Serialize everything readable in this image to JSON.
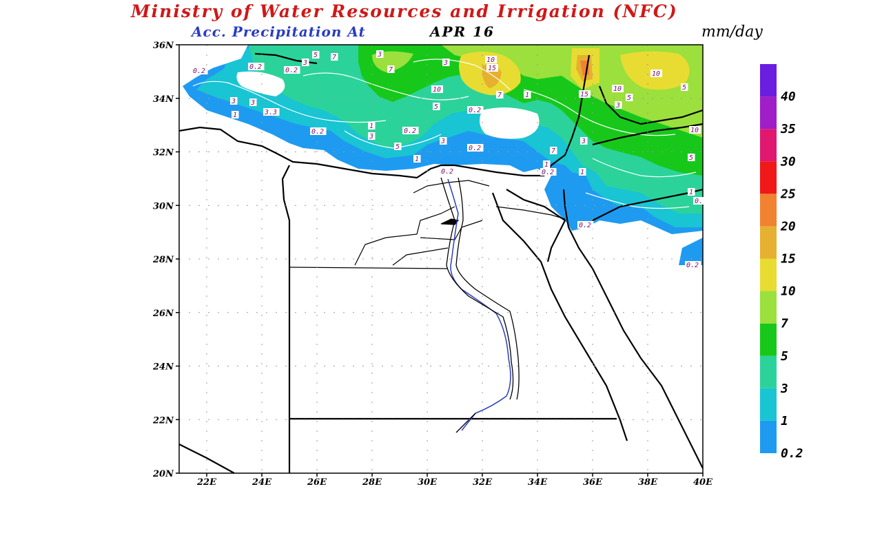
{
  "header": {
    "title": "Ministry of Water Resources and Irrigation (NFC)",
    "subtitle": "Acc. Precipitation  At",
    "date": "APR 16",
    "units": "mm/day"
  },
  "axes": {
    "lat_labels": [
      "36N",
      "34N",
      "32N",
      "30N",
      "28N",
      "26N",
      "24N",
      "22N",
      "20N"
    ],
    "lon_labels": [
      "22E",
      "24E",
      "26E",
      "28E",
      "30E",
      "32E",
      "34E",
      "36E",
      "38E",
      "40E"
    ]
  },
  "colorbar": {
    "levels": [
      "0.2",
      "1",
      "3",
      "5",
      "7",
      "10",
      "15",
      "20",
      "25",
      "30",
      "35",
      "40"
    ],
    "colors": [
      "#1e9bf0",
      "#19c4d3",
      "#2bd39a",
      "#17c81a",
      "#9be03c",
      "#e8dc32",
      "#e6b030",
      "#f08230",
      "#f01818",
      "#e01870",
      "#a01ec8",
      "#6b1ee0"
    ]
  },
  "contour_labels": [
    {
      "text": "3"
    },
    {
      "text": "5"
    },
    {
      "text": "7"
    },
    {
      "text": "3"
    },
    {
      "text": "3"
    },
    {
      "text": "10"
    },
    {
      "text": "15"
    },
    {
      "text": "0.2"
    },
    {
      "text": "0.2"
    },
    {
      "text": "0.2"
    },
    {
      "text": "7"
    },
    {
      "text": "10"
    },
    {
      "text": "5"
    },
    {
      "text": "7"
    },
    {
      "text": "1"
    },
    {
      "text": "0.2"
    },
    {
      "text": "3"
    },
    {
      "text": "3"
    },
    {
      "text": "3.3"
    },
    {
      "text": "1"
    },
    {
      "text": "0.2"
    },
    {
      "text": "1"
    },
    {
      "text": "3"
    },
    {
      "text": "0.2"
    },
    {
      "text": "5"
    },
    {
      "text": "3"
    },
    {
      "text": "0.2"
    },
    {
      "text": "1"
    },
    {
      "text": "0.2"
    },
    {
      "text": "1"
    },
    {
      "text": "15"
    },
    {
      "text": "10"
    },
    {
      "text": "5"
    },
    {
      "text": "3"
    },
    {
      "text": "10"
    },
    {
      "text": "5"
    },
    {
      "text": "10"
    },
    {
      "text": "7"
    },
    {
      "text": "5"
    },
    {
      "text": "3"
    },
    {
      "text": "1"
    },
    {
      "text": "0.2"
    },
    {
      "text": "0.2"
    },
    {
      "text": "1"
    },
    {
      "text": "0."
    },
    {
      "text": "0.2"
    }
  ]
}
